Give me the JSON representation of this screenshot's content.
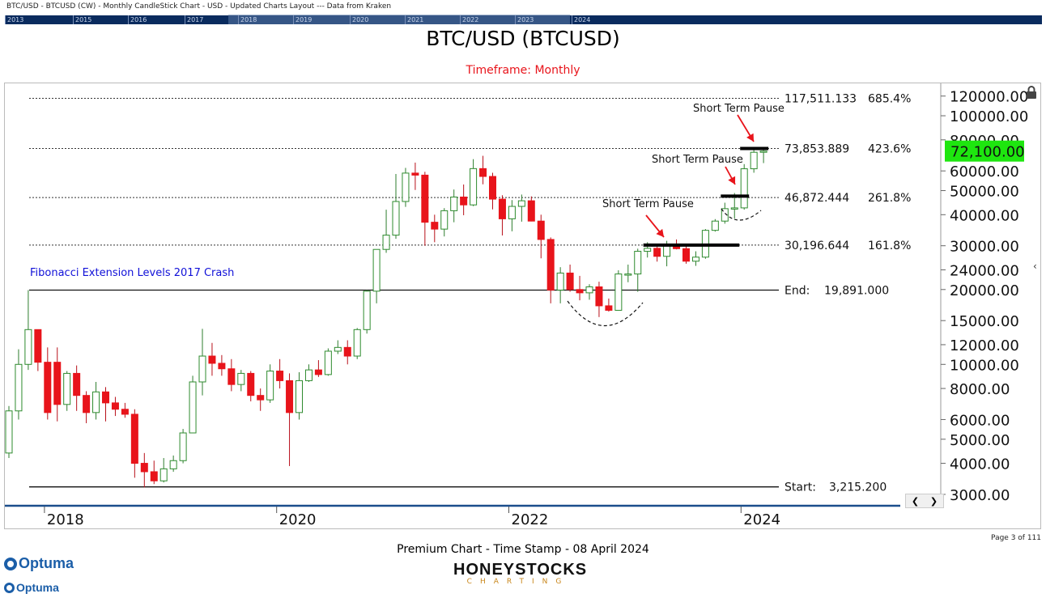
{
  "header": {
    "info": "BTC/USD - BTCUSD (CW) - Monthly CandleStick Chart - USD - Updated Charts Layout --- Data from Kraken",
    "mini_years": [
      "2013",
      "2015",
      "2016",
      "2017",
      "2018",
      "2019",
      "2020",
      "2021",
      "2022",
      "2023",
      "2024"
    ]
  },
  "title": "BTC/USD (BTCUSD)",
  "subtitle": "Timeframe: Monthly",
  "footer": {
    "stamp": "Premium Chart - Time Stamp - 08 April 2024",
    "page": "Page 3 of 111",
    "optuma_brand": "Optuma",
    "honey_title": "HONEYSTOCKS",
    "honey_sub": "CHARTING"
  },
  "colors": {
    "up": "#2e8b2e",
    "down": "#e8141b",
    "price_tag": "#1ee60f",
    "annotation_blue": "#1010d8",
    "arrow": "#e8141b"
  },
  "chart_data": {
    "type": "candlestick",
    "y_scale": "log",
    "ylim": [
      2700,
      135000
    ],
    "y_ticks": [
      "120000.00",
      "100000.00",
      "80000.00",
      "60000.00",
      "50000.00",
      "40000.00",
      "30000.00",
      "24000.00",
      "20000.00",
      "15000.00",
      "12000.00",
      "10000.00",
      "8000.00",
      "6000.00",
      "5000.00",
      "4000.00",
      "3000.00"
    ],
    "y_tick_values": [
      120000,
      100000,
      80000,
      60000,
      50000,
      40000,
      30000,
      24000,
      20000,
      15000,
      12000,
      10000,
      8000,
      6000,
      5000,
      4000,
      3000
    ],
    "x_ticks": [
      {
        "label": "2018",
        "idx": 2
      },
      {
        "label": "2020",
        "idx": 26
      },
      {
        "label": "2022",
        "idx": 50
      },
      {
        "label": "2024",
        "idx": 74
      }
    ],
    "last_price": "72,100.00",
    "candles": [
      [
        4400,
        6500,
        4200,
        6800
      ],
      [
        6500,
        10000,
        6000,
        11500
      ],
      [
        10000,
        13800,
        9500,
        19891
      ],
      [
        13800,
        10200,
        9400,
        13500
      ],
      [
        10200,
        6400,
        6000,
        11700
      ],
      [
        10200,
        6900,
        5900,
        11700
      ],
      [
        6900,
        9200,
        6500,
        9400
      ],
      [
        9200,
        7500,
        6500,
        9900
      ],
      [
        7500,
        6400,
        5800,
        7800
      ],
      [
        6400,
        7750,
        6000,
        8500
      ],
      [
        7750,
        7000,
        5900,
        8100
      ],
      [
        7000,
        6600,
        6200,
        7400
      ],
      [
        6600,
        6300,
        6100,
        7000
      ],
      [
        6300,
        4000,
        3500,
        6600
      ],
      [
        4000,
        3700,
        3200,
        4400
      ],
      [
        3700,
        3400,
        3300,
        4100
      ],
      [
        3400,
        3800,
        3350,
        4200
      ],
      [
        3800,
        4100,
        3700,
        4300
      ],
      [
        4100,
        5300,
        4000,
        5500
      ],
      [
        5300,
        8500,
        5300,
        9000
      ],
      [
        8500,
        10800,
        7500,
        13900
      ],
      [
        10800,
        10100,
        9000,
        12200
      ],
      [
        10100,
        9600,
        9000,
        10900
      ],
      [
        9600,
        8300,
        7800,
        10500
      ],
      [
        8300,
        9200,
        7800,
        9500
      ],
      [
        9200,
        7500,
        7100,
        9400
      ],
      [
        7500,
        7200,
        6500,
        8000
      ],
      [
        7200,
        9400,
        7000,
        10000
      ],
      [
        9400,
        8600,
        8000,
        10500
      ],
      [
        8600,
        6400,
        3900,
        9200
      ],
      [
        6400,
        8600,
        6000,
        9300
      ],
      [
        8600,
        9500,
        8500,
        10000
      ],
      [
        9500,
        9100,
        8900,
        10400
      ],
      [
        9100,
        11300,
        9000,
        11600
      ],
      [
        11300,
        11700,
        11000,
        12500
      ],
      [
        11700,
        10800,
        10000,
        12500
      ],
      [
        10800,
        13800,
        10500,
        14000
      ],
      [
        13800,
        19700,
        13300,
        19900
      ],
      [
        19700,
        29000,
        17600,
        29000
      ],
      [
        29000,
        33100,
        28100,
        41900
      ],
      [
        33100,
        45200,
        32000,
        58300
      ],
      [
        45200,
        58800,
        43000,
        61700
      ],
      [
        58800,
        57700,
        50300,
        64800
      ],
      [
        57700,
        37300,
        30000,
        59500
      ],
      [
        37300,
        35000,
        31000,
        40000
      ],
      [
        35000,
        41500,
        32700,
        42500
      ],
      [
        41500,
        47100,
        37300,
        50500
      ],
      [
        47100,
        43800,
        39800,
        52900
      ],
      [
        43800,
        61300,
        43300,
        66900
      ],
      [
        61300,
        57000,
        53000,
        69000
      ],
      [
        57000,
        46200,
        42000,
        59000
      ],
      [
        46200,
        38500,
        33000,
        47900
      ],
      [
        38500,
        43200,
        34300,
        45800
      ],
      [
        43200,
        45500,
        37500,
        48200
      ],
      [
        45500,
        37700,
        37600,
        47400
      ],
      [
        37700,
        31800,
        26700,
        40000
      ],
      [
        31800,
        19900,
        17600,
        32400
      ],
      [
        19900,
        23300,
        17600,
        24600
      ],
      [
        23300,
        20000,
        19600,
        25200
      ],
      [
        20000,
        19400,
        18100,
        22700
      ],
      [
        19400,
        20500,
        18200,
        21000
      ],
      [
        20500,
        17200,
        15500,
        21500
      ],
      [
        17200,
        16500,
        16300,
        18400
      ],
      [
        16500,
        23100,
        16500,
        23900
      ],
      [
        23100,
        23100,
        21400,
        25200
      ],
      [
        23100,
        28500,
        19600,
        29200
      ],
      [
        28500,
        29300,
        26900,
        31000
      ],
      [
        29300,
        27200,
        25900,
        29800
      ],
      [
        27200,
        30500,
        24800,
        31400
      ],
      [
        30500,
        29200,
        29000,
        31800
      ],
      [
        29200,
        26000,
        25400,
        30000
      ],
      [
        26000,
        27000,
        24900,
        28500
      ],
      [
        27000,
        34600,
        26600,
        35000
      ],
      [
        34600,
        37700,
        34200,
        38400
      ],
      [
        37700,
        42300,
        36800,
        44700
      ],
      [
        42300,
        42600,
        38600,
        48900
      ],
      [
        42600,
        61200,
        41900,
        63900
      ],
      [
        61200,
        71300,
        59000,
        73800
      ],
      [
        71300,
        72100,
        64500,
        72700
      ]
    ],
    "fib_levels": [
      {
        "value": 117511.133,
        "label": "117,511.133",
        "pct": "685.4%"
      },
      {
        "value": 73853.889,
        "label": "73,853.889",
        "pct": "423.6%"
      },
      {
        "value": 46872.444,
        "label": "46,872.444",
        "pct": "261.8%"
      },
      {
        "value": 30196.644,
        "label": "30,196.644",
        "pct": "161.8%"
      }
    ],
    "end_level": {
      "value": 19891,
      "label": "End:",
      "val_text": "19,891.000"
    },
    "start_level": {
      "value": 3215.2,
      "label": "Start:",
      "val_text": "3,215.200"
    },
    "annotations": {
      "fib_title": "Fibonacci  Extension Levels 2017 Crash",
      "pause_labels": [
        "Short Term Pause",
        "Short Term Pause",
        "Short Term Pause"
      ]
    },
    "pause_bars": [
      {
        "value": 30196,
        "from_idx": 66,
        "to_idx": 75
      },
      {
        "value": 47500,
        "from_idx": 74,
        "to_idx": 76
      },
      {
        "value": 73853,
        "from_idx": 76,
        "to_idx": 78
      }
    ]
  }
}
